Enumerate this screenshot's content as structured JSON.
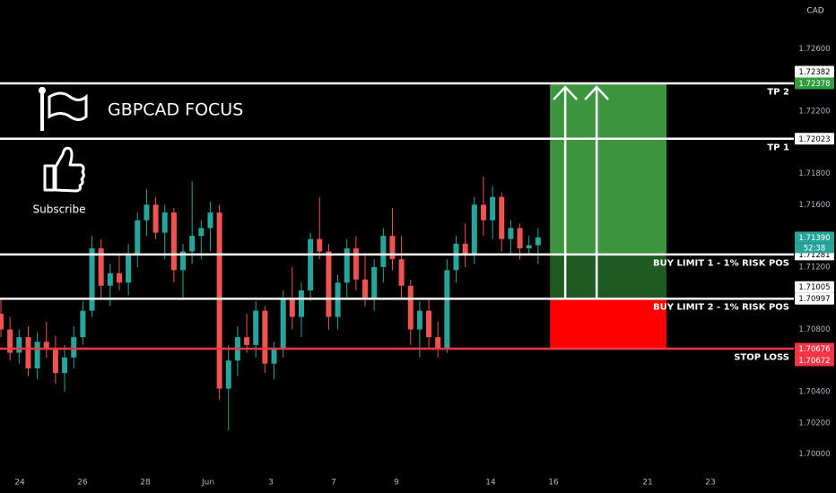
{
  "title": "GBPCAD FOCUS",
  "subscribe": "Subscribe",
  "chart_data": {
    "type": "candlestick",
    "currency": "CAD",
    "x": [
      -0.6,
      -0.31,
      -0.02,
      0.27,
      0.56,
      0.85,
      1.14,
      1.43,
      1.72,
      2.01,
      2.3,
      2.59,
      2.88,
      3.17,
      3.46,
      3.75,
      4.04,
      4.33,
      4.62,
      4.91,
      5.2,
      5.49,
      5.78,
      6.07,
      6.36,
      6.65,
      6.94,
      7.23,
      7.52,
      7.81,
      8.1,
      8.39,
      8.68,
      8.97,
      9.26,
      9.55,
      9.84,
      10.13,
      10.42,
      10.71,
      11.0,
      11.29,
      11.58,
      11.87,
      12.16,
      12.45,
      12.74,
      13.03,
      13.32,
      13.61,
      13.9,
      14.19,
      14.48,
      14.77,
      15.06,
      15.35,
      15.64,
      15.93,
      16.22,
      16.51
    ],
    "open": [
      1.709,
      1.708,
      1.7065,
      1.7075,
      1.7055,
      1.7072,
      1.7068,
      1.7052,
      1.7062,
      1.7075,
      1.7092,
      1.7132,
      1.7108,
      1.7116,
      1.711,
      1.7128,
      1.715,
      1.716,
      1.7142,
      1.7155,
      1.7118,
      1.713,
      1.714,
      1.7145,
      1.7155,
      1.7042,
      1.706,
      1.7075,
      1.707,
      1.7092,
      1.7058,
      1.7068,
      1.71,
      1.7088,
      1.7105,
      1.7138,
      1.713,
      1.7088,
      1.711,
      1.7132,
      1.7112,
      1.71,
      1.712,
      1.714,
      1.7125,
      1.7108,
      1.708,
      1.7092,
      1.7075,
      1.7068,
      1.7118,
      1.7135,
      1.7128,
      1.716,
      1.715,
      1.7165,
      1.7138,
      1.7145,
      1.7132,
      1.7134
    ],
    "high": [
      1.71,
      1.7088,
      1.708,
      1.7082,
      1.7078,
      1.7085,
      1.7076,
      1.707,
      1.7082,
      1.7098,
      1.714,
      1.7138,
      1.7122,
      1.7128,
      1.7135,
      1.7155,
      1.717,
      1.7165,
      1.716,
      1.7158,
      1.7135,
      1.7175,
      1.715,
      1.7162,
      1.716,
      1.707,
      1.7082,
      1.709,
      1.7098,
      1.7095,
      1.7072,
      1.7105,
      1.712,
      1.711,
      1.7142,
      1.7165,
      1.7135,
      1.7115,
      1.7138,
      1.714,
      1.7128,
      1.7125,
      1.7145,
      1.7158,
      1.714,
      1.7112,
      1.7098,
      1.71,
      1.7085,
      1.7125,
      1.714,
      1.7148,
      1.7165,
      1.7178,
      1.7172,
      1.7168,
      1.715,
      1.7148,
      1.714,
      1.7145
    ],
    "low": [
      1.7075,
      1.706,
      1.7058,
      1.705,
      1.7048,
      1.7062,
      1.7045,
      1.704,
      1.7055,
      1.707,
      1.7088,
      1.71,
      1.7095,
      1.7105,
      1.7102,
      1.712,
      1.714,
      1.7138,
      1.7125,
      1.711,
      1.71,
      1.7122,
      1.7125,
      1.713,
      1.7035,
      1.7015,
      1.705,
      1.7065,
      1.7062,
      1.7052,
      1.7048,
      1.7062,
      1.708,
      1.7075,
      1.7098,
      1.7125,
      1.708,
      1.708,
      1.71,
      1.7105,
      1.7095,
      1.7092,
      1.711,
      1.7118,
      1.71,
      1.707,
      1.7062,
      1.7068,
      1.7062,
      1.7065,
      1.711,
      1.712,
      1.7122,
      1.714,
      1.7138,
      1.713,
      1.7128,
      1.7125,
      1.7128,
      1.7122
    ],
    "close": [
      1.708,
      1.7065,
      1.7075,
      1.7055,
      1.7072,
      1.7068,
      1.7052,
      1.7062,
      1.7075,
      1.7092,
      1.7132,
      1.7108,
      1.7116,
      1.711,
      1.7128,
      1.715,
      1.716,
      1.7142,
      1.7155,
      1.7118,
      1.713,
      1.714,
      1.7145,
      1.7155,
      1.7042,
      1.706,
      1.7075,
      1.707,
      1.7092,
      1.7058,
      1.7068,
      1.71,
      1.7088,
      1.7105,
      1.7138,
      1.713,
      1.7088,
      1.711,
      1.7132,
      1.7112,
      1.71,
      1.712,
      1.714,
      1.7125,
      1.7108,
      1.708,
      1.7092,
      1.7075,
      1.7068,
      1.7118,
      1.7135,
      1.7128,
      1.716,
      1.715,
      1.7165,
      1.7138,
      1.7145,
      1.7132,
      1.7134,
      1.7139
    ],
    "up_color": "#26a69a",
    "down_color": "#ef5350",
    "xlim": [
      -0.629,
      24.657
    ],
    "ylim": [
      1.69923,
      1.72913
    ],
    "xticks": [
      {
        "value": 0,
        "label": "24"
      },
      {
        "value": 2,
        "label": "26"
      },
      {
        "value": 4,
        "label": "28"
      },
      {
        "value": 6,
        "label": "Jun"
      },
      {
        "value": 8,
        "label": "3"
      },
      {
        "value": 10,
        "label": "7"
      },
      {
        "value": 12,
        "label": "9"
      },
      {
        "value": 15,
        "label": "14"
      },
      {
        "value": 17,
        "label": "16"
      },
      {
        "value": 20,
        "label": "21"
      },
      {
        "value": 22,
        "label": "23"
      }
    ],
    "yticks": [
      {
        "value": 1.726,
        "label": "1.72600"
      },
      {
        "value": 1.722,
        "label": "1.72200"
      },
      {
        "value": 1.718,
        "label": "1.71800"
      },
      {
        "value": 1.716,
        "label": "1.71600"
      },
      {
        "value": 1.712,
        "label": "1.71200"
      },
      {
        "value": 1.708,
        "label": "1.70800"
      },
      {
        "value": 1.704,
        "label": "1.70400"
      },
      {
        "value": 1.702,
        "label": "1.70200"
      },
      {
        "value": 1.7,
        "label": "1.70000"
      }
    ],
    "levels": [
      {
        "name": "TP 2",
        "value": 1.72378,
        "color": "#ffffff",
        "label_color": "#2e9e3f"
      },
      {
        "name": "TP 1",
        "value": 1.72023,
        "color": "#ffffff",
        "label_color": "#ffffff"
      },
      {
        "name": "BUY LIMIT 1 - 1% RISK POS",
        "value": 1.71281,
        "color": "#ffffff",
        "label_color": "#ffffff"
      },
      {
        "name": "BUY LIMIT 2 - 1% RISK POS",
        "value": 1.70997,
        "color": "#ffffff",
        "label_color": "#ffffff"
      },
      {
        "name": "STOP LOSS",
        "value": 1.70676,
        "color": "#f23645",
        "label_color": "#f23645"
      }
    ],
    "price_labels": [
      {
        "value": 1.72382,
        "color": "#ffffff"
      },
      {
        "value": 1.71005,
        "color": "#ffffff"
      },
      {
        "value": 1.70672,
        "color": "#f23645"
      }
    ],
    "last_price": {
      "value": 1.7139,
      "label": "1.71390",
      "countdown": "52:38",
      "color": "#26a69a"
    },
    "position": {
      "x": [
        16.89,
        20.6
      ],
      "profit_color": "#3a953d",
      "zone_color": "#1e5a22",
      "loss_color": "#ff0000"
    }
  }
}
